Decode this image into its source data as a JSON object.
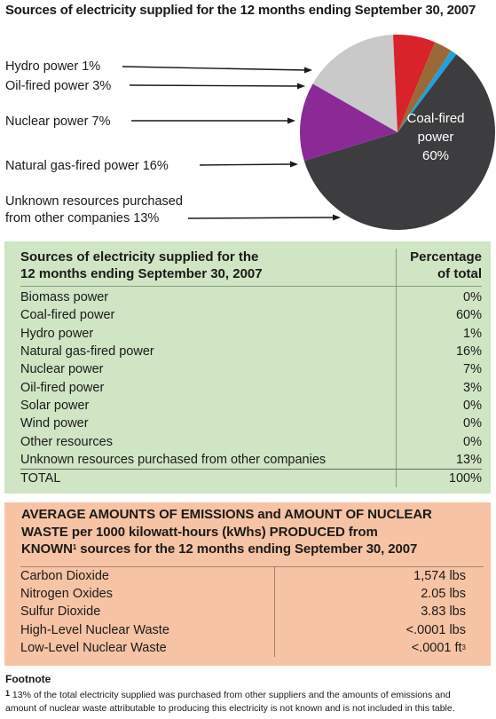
{
  "chart_data": {
    "type": "pie",
    "title": "Sources of electricity supplied for the 12 months ending September 30, 2007",
    "categories": [
      "Coal-fired power",
      "Unknown resources purchased from other companies",
      "Natural gas-fired power",
      "Nuclear power",
      "Oil-fired power",
      "Hydro power"
    ],
    "values": [
      60,
      13,
      16,
      7,
      3,
      1
    ],
    "colors": [
      "#3d3d3f",
      "#8b2a96",
      "#c9c9c9",
      "#d8232a",
      "#9a6a36",
      "#1aa3e0"
    ],
    "labels": {
      "hydro": "Hydro power 1%",
      "oil": "Oil-fired power 3%",
      "nuclear": "Nuclear power 7%",
      "gas": "Natural gas-fired power 16%",
      "unknown_line1": "Unknown resources purchased",
      "unknown_line2": "from other companies 13%",
      "coal_line1": "Coal-fired",
      "coal_line2": "power",
      "coal_line3": "60%"
    }
  },
  "sources_table": {
    "header_col1_line1": "Sources of electricity supplied for the",
    "header_col1_line2": "12 months ending September 30, 2007",
    "header_col2_line1": "Percentage",
    "header_col2_line2": "of total",
    "rows": [
      {
        "source": "Biomass power",
        "pct": "0%"
      },
      {
        "source": "Coal-fired power",
        "pct": "60%"
      },
      {
        "source": "Hydro power",
        "pct": "1%"
      },
      {
        "source": "Natural gas-fired power",
        "pct": "16%"
      },
      {
        "source": "Nuclear power",
        "pct": "7%"
      },
      {
        "source": "Oil-fired power",
        "pct": "3%"
      },
      {
        "source": "Solar power",
        "pct": "0%"
      },
      {
        "source": "Wind power",
        "pct": "0%"
      },
      {
        "source": "Other resources",
        "pct": "0%"
      },
      {
        "source": "Unknown resources purchased from other companies",
        "pct": "13%"
      }
    ],
    "total_label": "TOTAL",
    "total_value": "100%"
  },
  "emissions_table": {
    "heading_line1": "AVERAGE AMOUNTS OF EMISSIONS and AMOUNT OF NUCLEAR",
    "heading_line2": "WASTE per 1000 kilowatt-hours (kWhs) PRODUCED from",
    "heading_line3a": "KNOWN",
    "heading_sup": "1",
    "heading_line3b": " sources for the 12 months ending September 30, 2007",
    "rows": [
      {
        "item": "Carbon Dioxide",
        "value": "1,574 lbs"
      },
      {
        "item": "Nitrogen Oxides",
        "value": "2.05 lbs"
      },
      {
        "item": "Sulfur Dioxide",
        "value": "3.83 lbs"
      },
      {
        "item": "High-Level Nuclear Waste",
        "value": "<.0001 lbs"
      },
      {
        "item": "Low-Level Nuclear Waste",
        "value": "<.0001 ft",
        "sup": "3"
      }
    ]
  },
  "footnote": {
    "title": "Footnote",
    "marker": "1",
    "text_line1": " 13% of the total electricity supplied was purchased from other suppliers and the amounts of emissions and",
    "text_line2": "amount of nuclear waste attributable to producing this electricity is not known and is not included in this table."
  }
}
